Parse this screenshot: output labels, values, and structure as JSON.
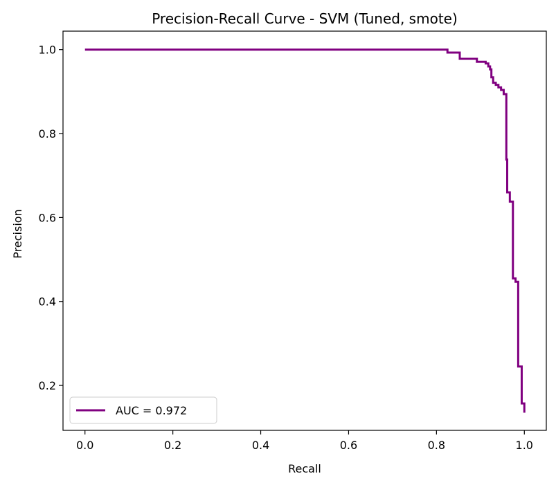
{
  "chart_data": {
    "type": "line",
    "title": "Precision-Recall Curve - SVM (Tuned, smote)",
    "xlabel": "Recall",
    "ylabel": "Precision",
    "xlim": [
      -0.05,
      1.05
    ],
    "ylim": [
      0.093,
      1.044
    ],
    "xticks": [
      0.0,
      0.2,
      0.4,
      0.6,
      0.8,
      1.0
    ],
    "xtick_labels": [
      "0.0",
      "0.2",
      "0.4",
      "0.6",
      "0.8",
      "1.0"
    ],
    "yticks": [
      0.2,
      0.4,
      0.6,
      0.8,
      1.0
    ],
    "ytick_labels": [
      "0.2",
      "0.4",
      "0.6",
      "0.8",
      "1.0"
    ],
    "grid": false,
    "legend": {
      "placement": "lower left"
    },
    "series": [
      {
        "name": "AUC = 0.972",
        "color": "#800080",
        "x": [
          0.0,
          0.825,
          0.825,
          0.853,
          0.853,
          0.892,
          0.892,
          0.912,
          0.912,
          0.918,
          0.918,
          0.922,
          0.922,
          0.925,
          0.925,
          0.929,
          0.929,
          0.935,
          0.935,
          0.941,
          0.941,
          0.947,
          0.947,
          0.953,
          0.953,
          0.959,
          0.959,
          0.961,
          0.961,
          0.967,
          0.967,
          0.974,
          0.974,
          0.98,
          0.98,
          0.986,
          0.986,
          0.994,
          0.994,
          1.0,
          1.0
        ],
        "y": [
          1.0,
          1.0,
          0.993,
          0.993,
          0.978,
          0.978,
          0.971,
          0.971,
          0.967,
          0.967,
          0.96,
          0.96,
          0.953,
          0.953,
          0.934,
          0.934,
          0.921,
          0.921,
          0.916,
          0.916,
          0.91,
          0.91,
          0.904,
          0.904,
          0.894,
          0.894,
          0.738,
          0.738,
          0.66,
          0.66,
          0.638,
          0.638,
          0.455,
          0.455,
          0.447,
          0.447,
          0.245,
          0.245,
          0.157,
          0.157,
          0.135
        ]
      }
    ]
  }
}
